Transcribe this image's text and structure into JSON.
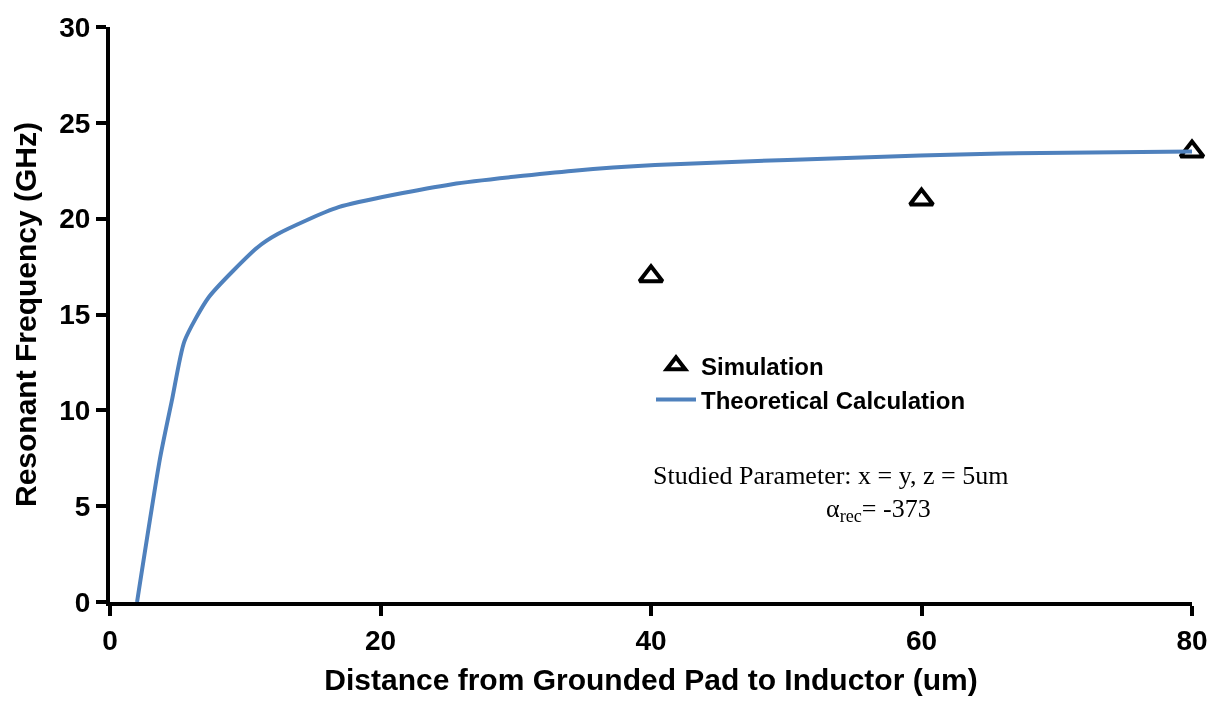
{
  "chart_data": {
    "type": "line",
    "xlabel": "Distance from Grounded Pad to Inductor (um)",
    "ylabel": "Resonant Frequency (GHz)",
    "xlim": [
      0,
      80
    ],
    "xticks": [
      0,
      20,
      40,
      60,
      80
    ],
    "ylim": [
      0,
      30
    ],
    "yticks": [
      0,
      5,
      10,
      15,
      20,
      25,
      30
    ],
    "legend": "right",
    "series": [
      {
        "name": "Simulation",
        "type": "scatter",
        "marker": "triangle",
        "color": "#000000",
        "x": [
          40,
          60,
          80
        ],
        "values": [
          17.0,
          21.0,
          23.5
        ]
      },
      {
        "name": "Theoretical Calculation",
        "color": "#4f81bd",
        "x": [
          2.0,
          3.7,
          4.6,
          5.5,
          7.3,
          10.9,
          12.4,
          16.9,
          25.3,
          34.3,
          40.3,
          59.9,
          65.9,
          80
        ],
        "values": [
          0,
          7.5,
          10.6,
          13.6,
          15.9,
          18.5,
          19.2,
          20.6,
          21.8,
          22.5,
          22.8,
          23.3,
          23.4,
          23.5
        ]
      }
    ],
    "annotations": [
      "Studied Parameter: x = y, z = 5um",
      "α$_{rec}$= -373"
    ]
  }
}
